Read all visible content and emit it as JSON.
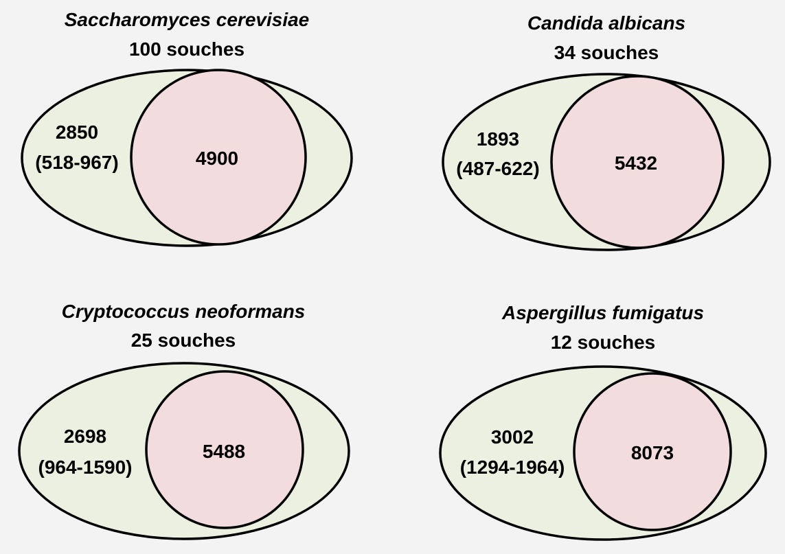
{
  "panels": [
    {
      "species": "Saccharomyces cerevisiae",
      "strains": "100 souches",
      "accessory": "2850",
      "accessory_range": "(518-967)",
      "core": "4900"
    },
    {
      "species": "Candida albicans",
      "strains": "34 souches",
      "accessory": "1893",
      "accessory_range": "(487-622)",
      "core": "5432"
    },
    {
      "species": "Cryptococcus neoformans",
      "strains": "25 souches",
      "accessory": "2698",
      "accessory_range": "(964-1590)",
      "core": "5488"
    },
    {
      "species": "Aspergillus fumigatus",
      "strains": "12 souches",
      "accessory": "3002",
      "accessory_range": "(1294-1964)",
      "core": "8073"
    }
  ],
  "colors": {
    "background": "#f3f3f3",
    "outer_fill": "#ebf0e1",
    "core_fill": "#f2dcdd",
    "stroke": "#000000"
  }
}
